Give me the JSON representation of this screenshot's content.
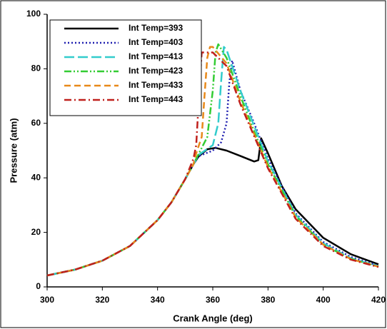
{
  "chart_data": {
    "type": "line",
    "xlabel": "Crank Angle (deg)",
    "ylabel": "Pressure (atm)",
    "xlim": [
      300,
      420
    ],
    "xticks": [
      300,
      320,
      340,
      360,
      380,
      400,
      420
    ],
    "ylim": [
      0,
      100
    ],
    "yticks": [
      0,
      20,
      40,
      60,
      80,
      100
    ],
    "grid": false,
    "legend": "upper left",
    "series": [
      {
        "name": "Int Temp=393",
        "color": "#000000",
        "style": "solid",
        "x": [
          300,
          310,
          320,
          330,
          340,
          345,
          350,
          353,
          355,
          358,
          361,
          365,
          370,
          375,
          376.5,
          377.5,
          380,
          385,
          390,
          400,
          410,
          420
        ],
        "values": [
          4.2,
          6.3,
          9.6,
          15,
          24.5,
          31,
          39.5,
          45,
          48,
          50.5,
          51,
          50,
          48,
          46,
          46.5,
          54.5,
          49,
          37,
          28.5,
          18,
          12,
          8.3
        ]
      },
      {
        "name": "Int Temp=403",
        "color": "#2020b0",
        "style": "dotted",
        "x": [
          300,
          310,
          320,
          330,
          340,
          345,
          350,
          353,
          355,
          360,
          363,
          365,
          366,
          367,
          370,
          375,
          380,
          390,
          400,
          410,
          420
        ],
        "values": [
          4.2,
          6.3,
          9.6,
          15,
          24.5,
          31,
          39.5,
          45,
          48,
          50,
          53,
          60,
          75,
          83,
          72,
          60,
          47,
          27,
          16.5,
          11,
          7.8
        ]
      },
      {
        "name": "Int Temp=413",
        "color": "#33cccc",
        "style": "long-dash",
        "x": [
          300,
          310,
          320,
          330,
          340,
          345,
          350,
          353,
          355,
          360,
          362,
          363,
          364,
          365,
          370,
          375,
          380,
          390,
          400,
          410,
          420
        ],
        "values": [
          4.2,
          6.3,
          9.6,
          15,
          24.5,
          31,
          39.5,
          45,
          48.5,
          52,
          60,
          75,
          88,
          87,
          72,
          59,
          46,
          26.5,
          16,
          10.5,
          7.6
        ]
      },
      {
        "name": "Int Temp=423",
        "color": "#33cc33",
        "style": "dash-dot-dot",
        "x": [
          300,
          310,
          320,
          330,
          340,
          345,
          350,
          353,
          355,
          358,
          360,
          361,
          362,
          365,
          370,
          375,
          380,
          390,
          400,
          410,
          420
        ],
        "values": [
          4.2,
          6.3,
          9.6,
          15,
          24.5,
          31,
          39.5,
          45,
          49,
          55,
          72,
          86,
          89,
          84,
          70,
          57,
          45,
          26,
          15.5,
          10.3,
          7.5
        ]
      },
      {
        "name": "Int Temp=433",
        "color": "#e8891a",
        "style": "dashed",
        "x": [
          300,
          310,
          320,
          330,
          340,
          345,
          350,
          353,
          354,
          356,
          357,
          358,
          359,
          360,
          365,
          370,
          380,
          390,
          400,
          410,
          420
        ],
        "values": [
          4.2,
          6.3,
          9.6,
          15,
          24.5,
          31,
          39.5,
          45,
          49,
          55,
          70,
          84,
          88,
          88,
          82,
          68,
          44,
          25.5,
          15.5,
          10.2,
          7.4
        ]
      },
      {
        "name": "Int Temp=443",
        "color": "#c0201c",
        "style": "dash-dot",
        "x": [
          300,
          310,
          320,
          330,
          340,
          345,
          350,
          353,
          354,
          355,
          356,
          357,
          360,
          365,
          370,
          380,
          390,
          400,
          410,
          420
        ],
        "values": [
          4.2,
          6.3,
          9.6,
          15,
          24.5,
          31,
          39.5,
          47,
          52,
          70,
          86,
          86,
          86,
          81,
          67,
          43.5,
          25,
          15,
          10,
          7.3
        ]
      }
    ]
  }
}
